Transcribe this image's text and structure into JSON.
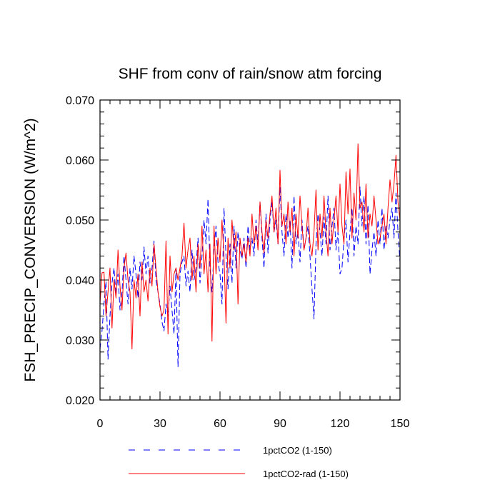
{
  "chart_data": {
    "type": "line",
    "title": "SHF from conv of rain/snow atm forcing",
    "xlabel": "",
    "ylabel": "FSH_PRECIP_CONVERSION  (W/m^2)",
    "xlim": [
      0,
      150
    ],
    "ylim": [
      0.02,
      0.07
    ],
    "x_ticks": [
      0,
      30,
      60,
      90,
      120,
      150
    ],
    "x_tick_labels": [
      "0",
      "30",
      "60",
      "90",
      "120",
      "150"
    ],
    "y_ticks": [
      0.02,
      0.03,
      0.04,
      0.05,
      0.06,
      0.07
    ],
    "y_tick_labels": [
      "0.020",
      "0.030",
      "0.040",
      "0.050",
      "0.060",
      "0.070"
    ],
    "grid": false,
    "legend_position": "bottom",
    "x": [
      0,
      1,
      2,
      3,
      4,
      5,
      6,
      7,
      8,
      9,
      10,
      11,
      12,
      13,
      14,
      15,
      16,
      17,
      18,
      19,
      20,
      21,
      22,
      23,
      24,
      25,
      26,
      27,
      28,
      29,
      30,
      31,
      32,
      33,
      34,
      35,
      36,
      37,
      38,
      39,
      40,
      41,
      42,
      43,
      44,
      45,
      46,
      47,
      48,
      49,
      50,
      51,
      52,
      53,
      54,
      55,
      56,
      57,
      58,
      59,
      60,
      61,
      62,
      63,
      64,
      65,
      66,
      67,
      68,
      69,
      70,
      71,
      72,
      73,
      74,
      75,
      76,
      77,
      78,
      79,
      80,
      81,
      82,
      83,
      84,
      85,
      86,
      87,
      88,
      89,
      90,
      91,
      92,
      93,
      94,
      95,
      96,
      97,
      98,
      99,
      100,
      101,
      102,
      103,
      104,
      105,
      106,
      107,
      108,
      109,
      110,
      111,
      112,
      113,
      114,
      115,
      116,
      117,
      118,
      119,
      120,
      121,
      122,
      123,
      124,
      125,
      126,
      127,
      128,
      129,
      130,
      131,
      132,
      133,
      134,
      135,
      136,
      137,
      138,
      139,
      140,
      141,
      142,
      143,
      144,
      145,
      146,
      147,
      148,
      149,
      150
    ],
    "series": [
      {
        "name": "1pctCO2 (1-150)",
        "color": "#0000ff",
        "dash": "dashed",
        "values": [
          0.0285,
          0.0315,
          0.036,
          0.0398,
          0.0268,
          0.034,
          0.0395,
          0.042,
          0.0375,
          0.041,
          0.035,
          0.038,
          0.044,
          0.04,
          0.036,
          0.042,
          0.0385,
          0.044,
          0.041,
          0.037,
          0.043,
          0.04,
          0.0455,
          0.041,
          0.044,
          0.0395,
          0.042,
          0.0465,
          0.04,
          0.038,
          0.036,
          0.033,
          0.0315,
          0.036,
          0.034,
          0.039,
          0.035,
          0.031,
          0.042,
          0.0255,
          0.041,
          0.043,
          0.044,
          0.039,
          0.0415,
          0.038,
          0.045,
          0.04,
          0.042,
          0.047,
          0.0395,
          0.044,
          0.05,
          0.046,
          0.0535,
          0.042,
          0.038,
          0.045,
          0.049,
          0.043,
          0.041,
          0.036,
          0.052,
          0.044,
          0.0385,
          0.046,
          0.0395,
          0.049,
          0.042,
          0.048,
          0.045,
          0.0435,
          0.047,
          0.042,
          0.049,
          0.045,
          0.047,
          0.044,
          0.05,
          0.046,
          0.053,
          0.047,
          0.042,
          0.051,
          0.0445,
          0.05,
          0.053,
          0.048,
          0.05,
          0.046,
          0.0555,
          0.048,
          0.044,
          0.051,
          0.047,
          0.05,
          0.042,
          0.054,
          0.046,
          0.048,
          0.043,
          0.05,
          0.045,
          0.047,
          0.049,
          0.044,
          0.0385,
          0.0335,
          0.046,
          0.051,
          0.048,
          0.044,
          0.0505,
          0.046,
          0.054,
          0.045,
          0.049,
          0.052,
          0.045,
          0.048,
          0.041,
          0.042,
          0.047,
          0.05,
          0.043,
          0.048,
          0.052,
          0.044,
          0.049,
          0.046,
          0.0555,
          0.049,
          0.054,
          0.046,
          0.0525,
          0.041,
          0.045,
          0.048,
          0.044,
          0.05,
          0.046,
          0.052,
          0.045,
          0.049,
          0.047,
          0.05,
          0.052,
          0.047,
          0.0545,
          0.048,
          0.043
        ]
      },
      {
        "name": "1pctCO2-rad (1-150)",
        "color": "#ff0000",
        "dash": "solid",
        "values": [
          0.036,
          0.0412,
          0.0413,
          0.034,
          0.038,
          0.042,
          0.032,
          0.04,
          0.037,
          0.045,
          0.039,
          0.035,
          0.042,
          0.0445,
          0.04,
          0.038,
          0.0285,
          0.04,
          0.037,
          0.041,
          0.034,
          0.043,
          0.038,
          0.04,
          0.0365,
          0.042,
          0.039,
          0.046,
          0.042,
          0.038,
          0.0355,
          0.034,
          0.035,
          0.0465,
          0.031,
          0.044,
          0.038,
          0.041,
          0.042,
          0.04,
          0.042,
          0.044,
          0.0495,
          0.042,
          0.045,
          0.047,
          0.04,
          0.044,
          0.038,
          0.046,
          0.042,
          0.049,
          0.041,
          0.045,
          0.038,
          0.046,
          0.0298,
          0.049,
          0.041,
          0.047,
          0.043,
          0.05,
          0.044,
          0.0328,
          0.047,
          0.042,
          0.05,
          0.045,
          0.048,
          0.036,
          0.047,
          0.044,
          0.046,
          0.043,
          0.047,
          0.044,
          0.051,
          0.046,
          0.049,
          0.045,
          0.053,
          0.048,
          0.0445,
          0.05,
          0.047,
          0.051,
          0.054,
          0.048,
          0.052,
          0.046,
          0.0583,
          0.049,
          0.051,
          0.046,
          0.053,
          0.048,
          0.052,
          0.044,
          0.051,
          0.047,
          0.054,
          0.049,
          0.045,
          0.047,
          0.052,
          0.046,
          0.044,
          0.048,
          0.055,
          0.045,
          0.051,
          0.047,
          0.054,
          0.048,
          0.044,
          0.052,
          0.046,
          0.05,
          0.054,
          0.048,
          0.056,
          0.049,
          0.046,
          0.058,
          0.051,
          0.0585,
          0.047,
          0.0545,
          0.05,
          0.0627,
          0.052,
          0.053,
          0.048,
          0.056,
          0.047,
          0.051,
          0.049,
          0.054,
          0.05,
          0.046,
          0.047,
          0.049,
          0.051,
          0.046,
          0.052,
          0.0567,
          0.053,
          0.056,
          0.0608,
          0.053,
          0.05
        ]
      }
    ]
  }
}
